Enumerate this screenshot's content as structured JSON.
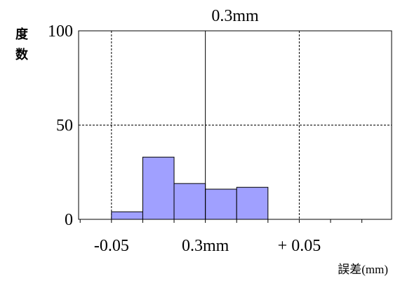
{
  "chart_data": {
    "type": "bar",
    "title": "0.3mm",
    "ylabel": "度数",
    "xlabel_unit": "誤差",
    "xlabel_suffix": "(mm)",
    "ylim": [
      0,
      100
    ],
    "yticks": [
      {
        "value": 0,
        "label": "0"
      },
      {
        "value": 50,
        "label": "50"
      },
      {
        "value": 100,
        "label": "100"
      }
    ],
    "xticks": [
      {
        "pos": 1,
        "label": "-0.05"
      },
      {
        "pos": 4,
        "label": "0.3mm"
      },
      {
        "pos": 7,
        "label": "+ 0.05"
      }
    ],
    "bins": 9,
    "values": [
      0,
      4,
      33,
      19,
      16,
      17,
      0,
      0,
      0
    ],
    "bar_color": "#a0a0ff",
    "grid": {
      "horizontal": [
        50
      ],
      "vertical_dashed": [
        1,
        7
      ],
      "vertical_solid": [
        4
      ]
    }
  }
}
